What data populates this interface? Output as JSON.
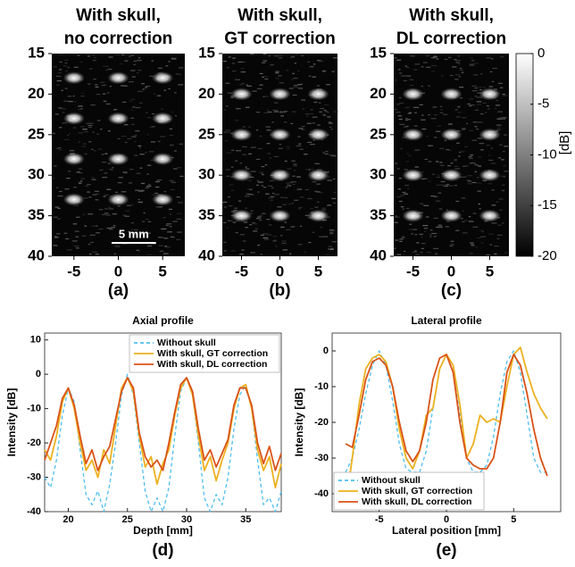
{
  "chart_data": [
    {
      "type": "image",
      "title": [
        "With skull,",
        "no correction"
      ],
      "panel_label": "(a)",
      "xlim": [
        -7.5,
        7.5
      ],
      "ylim": [
        15,
        40
      ],
      "yreversed": true,
      "xticks": [
        -5,
        0,
        5
      ],
      "yticks": [
        15,
        20,
        25,
        30,
        35,
        40
      ],
      "spots": {
        "x": [
          -5,
          0,
          5,
          -5,
          0,
          5,
          -5,
          0,
          5,
          -5,
          0,
          5
        ],
        "y": [
          18,
          18,
          18,
          23,
          23,
          23,
          28,
          28,
          28,
          33,
          33,
          33
        ]
      },
      "scalebar": {
        "label": "5 mm",
        "length": 5
      }
    },
    {
      "type": "image",
      "title": [
        "With skull,",
        "GT correction"
      ],
      "panel_label": "(b)",
      "xlim": [
        -7.5,
        7.5
      ],
      "ylim": [
        15,
        40
      ],
      "yreversed": true,
      "xticks": [
        -5,
        0,
        5
      ],
      "yticks": [
        15,
        20,
        25,
        30,
        35,
        40
      ],
      "spots": {
        "x": [
          -5,
          0,
          5,
          -5,
          0,
          5,
          -5,
          0,
          5,
          -5,
          0,
          5
        ],
        "y": [
          20,
          20,
          20,
          25,
          25,
          25,
          30,
          30,
          30,
          35,
          35,
          35
        ]
      }
    },
    {
      "type": "image",
      "title": [
        "With skull,",
        "DL correction"
      ],
      "panel_label": "(c)",
      "xlim": [
        -7.5,
        7.5
      ],
      "ylim": [
        15,
        40
      ],
      "yreversed": true,
      "xticks": [
        -5,
        0,
        5
      ],
      "yticks": [
        15,
        20,
        25,
        30,
        35,
        40
      ],
      "spots": {
        "x": [
          -5,
          0,
          5,
          -5,
          0,
          5,
          -5,
          0,
          5,
          -5,
          0,
          5
        ],
        "y": [
          20,
          20,
          20,
          25,
          25,
          25,
          30,
          30,
          30,
          35,
          35,
          35
        ]
      },
      "colorbar": {
        "label": "[dB]",
        "clim": [
          -20,
          0
        ],
        "cticks": [
          0,
          -5,
          -10,
          -15,
          -20
        ]
      }
    },
    {
      "type": "line",
      "title": "Axial profile",
      "panel_label": "(d)",
      "xlabel": "Depth [mm]",
      "ylabel": "Intensity [dB]",
      "xlim": [
        18,
        38
      ],
      "ylim": [
        -40,
        12
      ],
      "xticks": [
        20,
        25,
        30,
        35
      ],
      "yticks": [
        10,
        0,
        -10,
        -20,
        -30,
        -40
      ],
      "legend": "top-right",
      "x": [
        18,
        18.5,
        19,
        19.5,
        20,
        20.5,
        21,
        21.5,
        22,
        22.5,
        23,
        23.5,
        24,
        24.5,
        25,
        25.5,
        26,
        26.5,
        27,
        27.5,
        28,
        28.5,
        29,
        29.5,
        30,
        30.5,
        31,
        31.5,
        32,
        32.5,
        33,
        33.5,
        34,
        34.5,
        35,
        35.5,
        36,
        36.5,
        37,
        37.5,
        38
      ],
      "series": [
        {
          "name": "Without skull",
          "color": "#4dbeee",
          "linestyle": "dashed",
          "values": [
            -30,
            -33,
            -25,
            -12,
            -4,
            -8,
            -22,
            -35,
            -38,
            -34,
            -40,
            -32,
            -20,
            -6,
            0,
            -6,
            -20,
            -34,
            -40,
            -36,
            -40,
            -33,
            -18,
            -5,
            -1,
            -6,
            -20,
            -36,
            -40,
            -35,
            -38,
            -30,
            -16,
            -6,
            -3,
            -10,
            -25,
            -38,
            -36,
            -40,
            -34
          ]
        },
        {
          "name": "With skull, GT correction",
          "color": "#edb120",
          "linestyle": "solid",
          "values": [
            -22,
            -25,
            -18,
            -8,
            -4,
            -10,
            -20,
            -28,
            -25,
            -30,
            -22,
            -26,
            -15,
            -4,
            -1,
            -5,
            -18,
            -27,
            -24,
            -32,
            -26,
            -22,
            -12,
            -4,
            -1,
            -6,
            -18,
            -28,
            -24,
            -31,
            -25,
            -20,
            -10,
            -4,
            -3,
            -10,
            -22,
            -28,
            -24,
            -33,
            -26
          ]
        },
        {
          "name": "With skull, DL correction",
          "color": "#d95319",
          "linestyle": "solid",
          "values": [
            -25,
            -20,
            -15,
            -7,
            -4,
            -9,
            -18,
            -26,
            -22,
            -28,
            -24,
            -21,
            -13,
            -5,
            -1,
            -4,
            -17,
            -24,
            -27,
            -25,
            -28,
            -20,
            -11,
            -3,
            -1,
            -5,
            -16,
            -25,
            -22,
            -27,
            -23,
            -19,
            -9,
            -4,
            -4,
            -9,
            -20,
            -26,
            -21,
            -28,
            -23
          ]
        }
      ]
    },
    {
      "type": "line",
      "title": "Lateral profile",
      "panel_label": "(e)",
      "xlabel": "Lateral position [mm]",
      "ylabel": "Intensity [dB]",
      "xlim": [
        -8.5,
        8.5
      ],
      "ylim": [
        -45,
        5
      ],
      "xticks": [
        -5,
        0,
        5
      ],
      "yticks": [
        0,
        -10,
        -20,
        -30,
        -40
      ],
      "legend": "bottom-left",
      "x": [
        -7.5,
        -7,
        -6.5,
        -6,
        -5.5,
        -5,
        -4.5,
        -4,
        -3.5,
        -3,
        -2.5,
        -2,
        -1.5,
        -1,
        -0.5,
        0,
        0.5,
        1,
        1.5,
        2,
        2.5,
        3,
        3.5,
        4,
        4.5,
        5,
        5.5,
        6,
        6.5,
        7,
        7.5
      ],
      "series": [
        {
          "name": "Without skull",
          "color": "#4dbeee",
          "linestyle": "dashed",
          "values": [
            -34,
            -30,
            -22,
            -12,
            -4,
            0,
            -4,
            -14,
            -26,
            -33,
            -34,
            -34,
            -28,
            -16,
            -5,
            -1,
            -6,
            -18,
            -30,
            -34,
            -34,
            -32,
            -24,
            -12,
            -3,
            0,
            -6,
            -18,
            -30,
            -34,
            -34
          ]
        },
        {
          "name": "With skull, GT correction",
          "color": "#edb120",
          "linestyle": "solid",
          "values": [
            -43,
            -30,
            -15,
            -5,
            -2,
            -1,
            -3,
            -10,
            -22,
            -30,
            -33,
            -28,
            -18,
            -16,
            -5,
            -1,
            -4,
            -15,
            -30,
            -26,
            -18,
            -20,
            -19,
            -20,
            -10,
            -1,
            1,
            -6,
            -12,
            -16,
            -19
          ]
        },
        {
          "name": "With skull, DL correction",
          "color": "#d95319",
          "linestyle": "solid",
          "values": [
            -26,
            -27,
            -18,
            -8,
            -3,
            -2,
            -4,
            -10,
            -20,
            -28,
            -31,
            -28,
            -20,
            -8,
            -2,
            -1,
            -6,
            -20,
            -30,
            -32,
            -33,
            -33,
            -30,
            -20,
            -6,
            -1,
            -4,
            -12,
            -22,
            -30,
            -35
          ]
        }
      ]
    }
  ]
}
